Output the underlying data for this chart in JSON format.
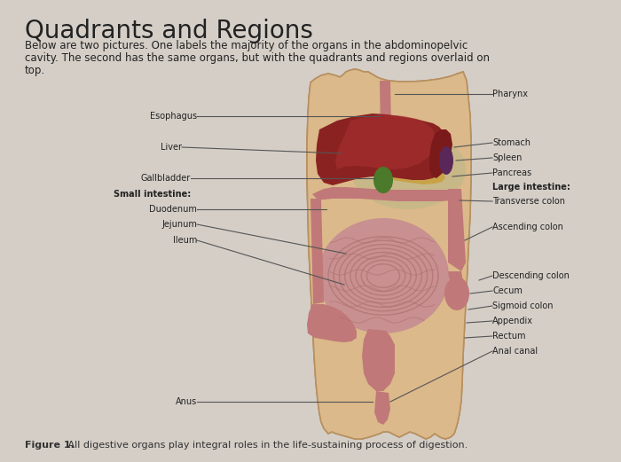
{
  "title": "Quadrants and Regions",
  "subtitle_line1": "Below are two pictures. One labels the majority of the organs in the abdominopelvic",
  "subtitle_line2": "cavity. The second has the same organs, but with the quadrants and regions overlaid on",
  "subtitle_line3": "top.",
  "figure_caption_bold": "Figure 1.",
  "figure_caption_rest": " All digestive organs play integral roles in the life-sustaining process of digestion.",
  "bg_color": "#cbc5bc",
  "panel_color": "#d8d2cb",
  "body_skin": "#dbb98a",
  "body_skin2": "#e8cda0",
  "body_outline": "#b89060",
  "liver_color": "#8B2222",
  "stomach_bg": "#c8b090",
  "stomach_color": "#7B1A1A",
  "gallbladder_color": "#4a7a2a",
  "spleen_color": "#5a2858",
  "pancreas_color": "#c8a040",
  "large_int_color": "#c07878",
  "small_int_color": "#c89090",
  "small_int_line": "#b07070",
  "rectum_color": "#c07878",
  "text_color": "#222222",
  "line_color": "#555555",
  "caption_color": "#333333"
}
